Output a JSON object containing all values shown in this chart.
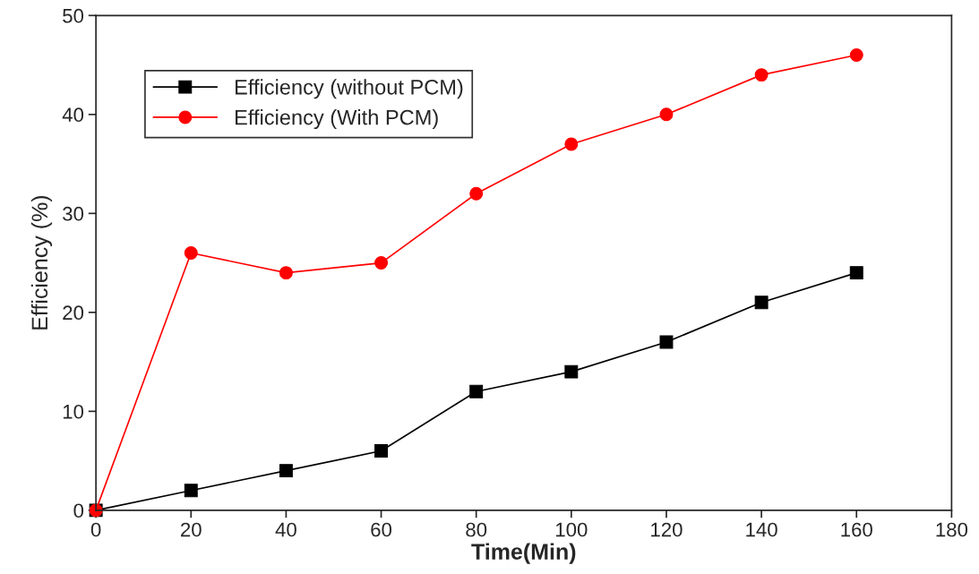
{
  "chart_data": {
    "type": "line",
    "xlabel": "Time(Min)",
    "ylabel": "Efficiency (%)",
    "x": [
      0,
      20,
      40,
      60,
      80,
      100,
      120,
      140,
      160
    ],
    "series": [
      {
        "name": "Efficiency (without PCM)",
        "color": "#000000",
        "marker": "square",
        "values": [
          0,
          2,
          4,
          6,
          12,
          14,
          17,
          21,
          24
        ]
      },
      {
        "name": "Efficiency (With PCM)",
        "color": "#ff0000",
        "marker": "circle",
        "values": [
          0,
          26,
          24,
          25,
          32,
          37,
          40,
          44,
          46
        ]
      }
    ],
    "xlim": [
      0,
      180
    ],
    "xticks": [
      0,
      20,
      40,
      60,
      80,
      100,
      120,
      140,
      160,
      180
    ],
    "ylim": [
      0,
      50
    ],
    "yticks": [
      0,
      10,
      20,
      30,
      40,
      50
    ],
    "grid": false,
    "legend": "top left",
    "line_style": "solid"
  }
}
